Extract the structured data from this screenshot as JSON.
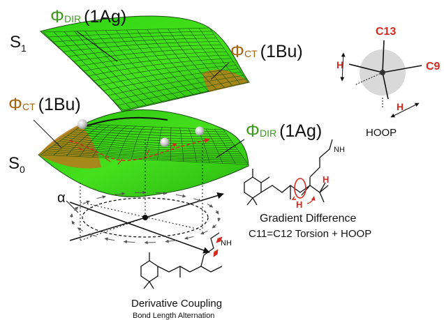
{
  "surfaces": {
    "upper_state": {
      "label": "S",
      "sub": "1"
    },
    "lower_state": {
      "label": "S",
      "sub": "0"
    },
    "phi_dir_top": {
      "phi": "Φ",
      "sub": "DIR",
      "paren": "(1Ag)"
    },
    "phi_ct_top": {
      "phi": "Φ",
      "sub": "CT",
      "paren": "(1Bu)"
    },
    "phi_ct_bottom": {
      "phi": "Φ",
      "sub": "CT",
      "paren": "(1Bu)"
    },
    "phi_dir_bottom": {
      "phi": "Φ",
      "sub": "DIR",
      "paren": "(1Ag)"
    },
    "alpha": "α"
  },
  "hoop": {
    "title": "HOOP",
    "atoms": {
      "c13": "C13",
      "c9": "C9",
      "h_left": "H",
      "h_bottom": "H"
    }
  },
  "gradient_difference": {
    "title": "Gradient Difference",
    "subtitle": "C11=C12 Torsion + HOOP",
    "atom_n": "NH",
    "atom_h1": "H",
    "atom_h2": "H"
  },
  "derivative_coupling": {
    "title": "Derivative Coupling",
    "subtitle": "Bond Length Alternation",
    "atom_n": "NH"
  },
  "colors": {
    "surface_green": "#3ee01a",
    "surface_mesh": "#1a4a10",
    "surface_ct": "#b77a1a",
    "label_green": "#3d9a1f",
    "label_brown": "#a8650f",
    "red": "#d4291c",
    "hoop_disk": "#d9d9d9"
  }
}
